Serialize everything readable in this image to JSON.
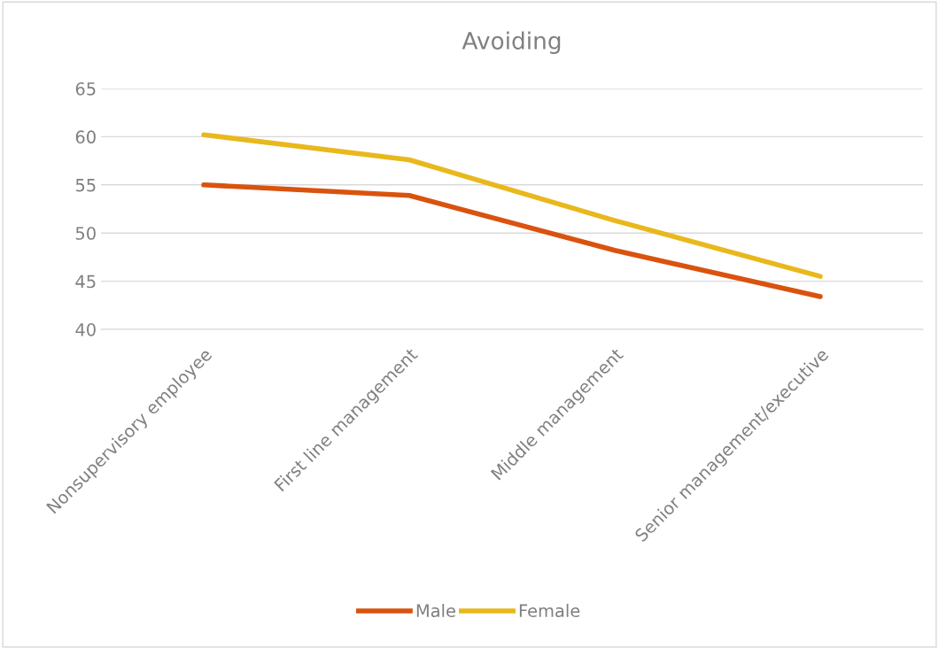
{
  "chart_data": {
    "type": "line",
    "title": "Avoiding",
    "categories": [
      "Nonsupervisory employee",
      "First line management",
      "Middle management",
      "Senior management/executive"
    ],
    "series": [
      {
        "name": "Male",
        "color": "#d9530f",
        "values": [
          55.0,
          53.9,
          48.2,
          43.4
        ]
      },
      {
        "name": "Female",
        "color": "#e8b81c",
        "values": [
          60.2,
          57.6,
          51.3,
          45.5
        ]
      }
    ],
    "ylim": [
      40,
      65
    ],
    "yticks": [
      40,
      45,
      50,
      55,
      60,
      65
    ],
    "grid": "y",
    "legend": "bottom",
    "marker": "none",
    "line_style": "solid"
  }
}
